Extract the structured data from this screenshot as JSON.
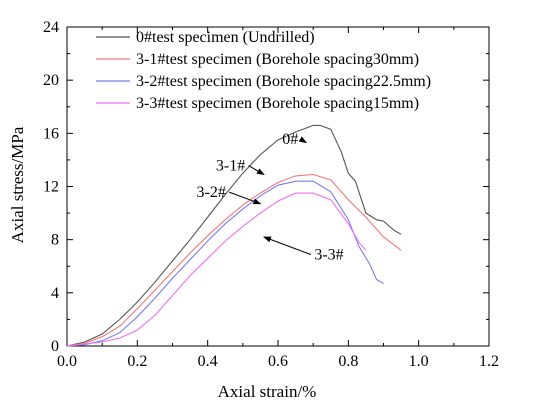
{
  "chart_data": {
    "type": "line",
    "xlabel": "Axial strain/%",
    "ylabel": "Axial stress/MPa",
    "xlim": [
      0.0,
      1.2
    ],
    "ylim": [
      0,
      24
    ],
    "xticks": [
      0.0,
      0.2,
      0.4,
      0.6,
      0.8,
      1.0,
      1.2
    ],
    "xtick_labels": [
      "0.0",
      "0.2",
      "0.4",
      "0.6",
      "0.8",
      "1.0",
      "1.2"
    ],
    "yticks": [
      0,
      4,
      8,
      12,
      16,
      20,
      24
    ],
    "ytick_labels": [
      "0",
      "4",
      "8",
      "12",
      "16",
      "20",
      "24"
    ],
    "grid": false,
    "legend_position": "top-left",
    "series": [
      {
        "name": "0#test specimen (Undrilled)",
        "color": "#555555",
        "x": [
          0.0,
          0.05,
          0.1,
          0.15,
          0.2,
          0.25,
          0.3,
          0.35,
          0.4,
          0.45,
          0.5,
          0.55,
          0.6,
          0.65,
          0.7,
          0.72,
          0.75,
          0.78,
          0.8,
          0.82,
          0.85,
          0.88,
          0.9,
          0.93,
          0.95
        ],
        "y": [
          0.0,
          0.3,
          0.9,
          2.0,
          3.3,
          4.8,
          6.4,
          8.0,
          9.7,
          11.4,
          13.0,
          14.4,
          15.5,
          16.1,
          16.6,
          16.6,
          16.3,
          14.6,
          13.0,
          12.4,
          10.0,
          9.5,
          9.4,
          8.7,
          8.4
        ]
      },
      {
        "name": "3-1#test specimen (Borehole spacing30mm)",
        "color": "#f07878",
        "x": [
          0.0,
          0.05,
          0.1,
          0.15,
          0.2,
          0.25,
          0.3,
          0.35,
          0.4,
          0.45,
          0.5,
          0.55,
          0.6,
          0.65,
          0.7,
          0.75,
          0.8,
          0.85,
          0.9,
          0.95
        ],
        "y": [
          0.0,
          0.2,
          0.7,
          1.5,
          2.8,
          4.2,
          5.6,
          7.0,
          8.3,
          9.5,
          10.6,
          11.5,
          12.3,
          12.8,
          12.9,
          12.5,
          11.0,
          9.7,
          8.2,
          7.2
        ]
      },
      {
        "name": "3-2#test specimen (Borehole spacing22.5mm)",
        "color": "#7b7bf0",
        "x": [
          0.0,
          0.05,
          0.1,
          0.15,
          0.2,
          0.25,
          0.3,
          0.35,
          0.4,
          0.45,
          0.5,
          0.55,
          0.6,
          0.65,
          0.7,
          0.75,
          0.8,
          0.83,
          0.86,
          0.88,
          0.9
        ],
        "y": [
          0.0,
          0.1,
          0.4,
          1.0,
          2.2,
          3.6,
          5.1,
          6.5,
          7.9,
          9.2,
          10.3,
          11.3,
          12.1,
          12.4,
          12.4,
          11.6,
          9.5,
          7.5,
          6.2,
          5.0,
          4.7
        ]
      },
      {
        "name": "3-3#test specimen (Borehole spacing15mm)",
        "color": "#f070f0",
        "x": [
          0.0,
          0.1,
          0.15,
          0.2,
          0.25,
          0.3,
          0.35,
          0.4,
          0.45,
          0.5,
          0.55,
          0.6,
          0.65,
          0.7,
          0.75,
          0.8,
          0.83,
          0.85
        ],
        "y": [
          0.0,
          0.3,
          0.6,
          1.2,
          2.3,
          3.8,
          5.3,
          6.6,
          7.9,
          9.0,
          10.0,
          10.9,
          11.5,
          11.5,
          11.0,
          9.2,
          7.8,
          7.2
        ]
      }
    ],
    "annotations": [
      {
        "text": "0#",
        "label_x": 0.635,
        "label_y": 15.2,
        "arrow_x": 0.68,
        "arrow_y": 15.3
      },
      {
        "text": "3-1#",
        "label_x": 0.465,
        "label_y": 13.2,
        "arrow_x": 0.56,
        "arrow_y": 12.9
      },
      {
        "text": "3-2#",
        "label_x": 0.41,
        "label_y": 11.2,
        "arrow_x": 0.55,
        "arrow_y": 10.7
      },
      {
        "text": "3-3#",
        "label_x": 0.745,
        "label_y": 6.5,
        "arrow_x": 0.56,
        "arrow_y": 8.2
      }
    ]
  }
}
